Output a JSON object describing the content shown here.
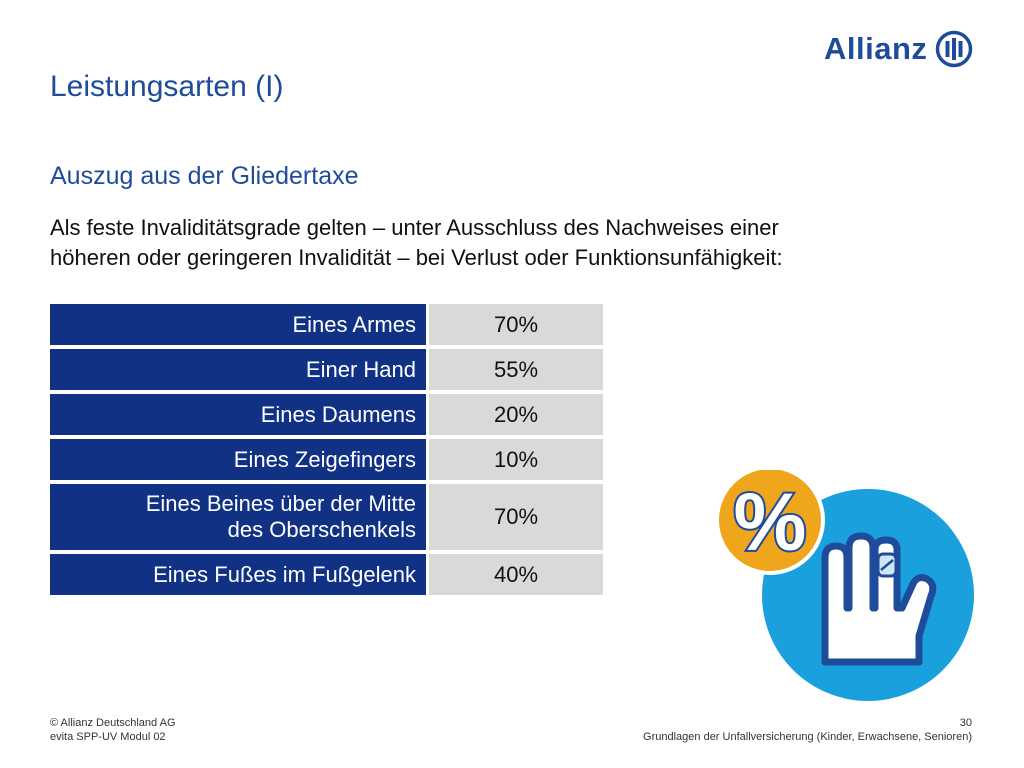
{
  "brand": {
    "name": "Allianz",
    "color": "#1f4b9b"
  },
  "title": "Leistungsarten (I)",
  "subtitle": "Auszug aus der Gliedertaxe",
  "intro": {
    "line1": "Als feste Invaliditätsgrade gelten – unter Ausschluss des Nachweises einer",
    "line2": "höheren oder geringeren Invalidität – bei Verlust oder Funktionsunfähigkeit:"
  },
  "table": {
    "rows": [
      {
        "label": "Eines Armes",
        "value": "70%"
      },
      {
        "label": "Einer Hand",
        "value": "55%"
      },
      {
        "label": "Eines Daumens",
        "value": "20%"
      },
      {
        "label": "Eines Zeigefingers",
        "value": "10%"
      },
      {
        "label_line1": "Eines Beines über der Mitte",
        "label_line2": "des Oberschenkels",
        "value": "70%"
      },
      {
        "label": "Eines Fußes im Fußgelenk",
        "value": "40%"
      }
    ]
  },
  "illustration": {
    "symbol": "%",
    "circle_color": "#1aa0dc",
    "badge_color": "#f0a61c",
    "icon": "injured-hand-icon"
  },
  "footer": {
    "copyright": "© Allianz Deutschland AG",
    "module": "evita SPP-UV Modul 02",
    "page_number": "30",
    "course": "Grundlagen der Unfallversicherung (Kinder, Erwachsene, Senioren)"
  }
}
